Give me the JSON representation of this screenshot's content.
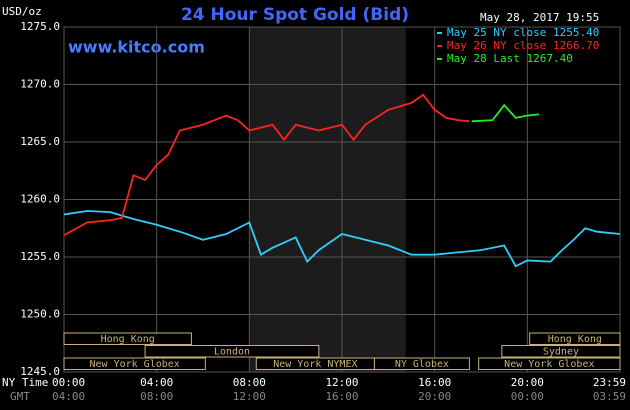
{
  "chart_data": {
    "type": "line",
    "title": "24 Hour Spot Gold (Bid)",
    "y_label": "USD/oz",
    "timestamp": "May 28, 2017 19:55",
    "watermark": "www.kitco.com",
    "x_row_label": "NY Time",
    "x2_row_label": "GMT",
    "xlim": [
      0,
      24
    ],
    "xticks": [
      {
        "value": 0,
        "label": "00:00"
      },
      {
        "value": 4,
        "label": "04:00"
      },
      {
        "value": 8,
        "label": "08:00"
      },
      {
        "value": 12,
        "label": "12:00"
      },
      {
        "value": 16,
        "label": "16:00"
      },
      {
        "value": 20,
        "label": "20:00"
      },
      {
        "value": 24,
        "label": "23:59"
      }
    ],
    "x2_labels": [
      "04:00",
      "08:00",
      "12:00",
      "16:00",
      "20:00",
      "00:00",
      "03:59"
    ],
    "ylim": [
      1245,
      1275
    ],
    "yticks": [
      {
        "value": 1245,
        "label": "1245.0"
      },
      {
        "value": 1250,
        "label": "1250.0"
      },
      {
        "value": 1255,
        "label": "1255.0"
      },
      {
        "value": 1260,
        "label": "1260.0"
      },
      {
        "value": 1265,
        "label": "1265.0"
      },
      {
        "value": 1270,
        "label": "1270.0"
      },
      {
        "value": 1275,
        "label": "1275.0"
      }
    ],
    "grid": true,
    "series": [
      {
        "name": "May 25 NY close 1255.40",
        "color": "#33ccff",
        "x": [
          0,
          1,
          2,
          3,
          4,
          5,
          6,
          7,
          8,
          8.5,
          9,
          10,
          10.5,
          11,
          12,
          13,
          14,
          15,
          16,
          17,
          18,
          19,
          19.5,
          20,
          21,
          21.5,
          22,
          22.5,
          23,
          24
        ],
        "values": [
          1258.7,
          1259,
          1258.9,
          1258.3,
          1257.8,
          1257.2,
          1256.5,
          1257,
          1258,
          1255.2,
          1255.8,
          1256.7,
          1254.6,
          1255.6,
          1257,
          1256.5,
          1256,
          1255.2,
          1255.2,
          1255.4,
          1255.6,
          1256,
          1254.2,
          1254.7,
          1254.6,
          1255.6,
          1256.5,
          1257.5,
          1257.2,
          1257
        ]
      },
      {
        "name": "May 26 NY close 1266.70",
        "color": "#ff2222",
        "x": [
          0,
          1,
          2,
          2.5,
          3,
          3.5,
          4,
          4.5,
          5,
          6,
          7,
          7.5,
          8,
          9,
          9.5,
          10,
          11,
          12,
          12.5,
          13,
          14,
          15,
          15.5,
          16,
          16.5,
          17,
          17.5
        ],
        "values": [
          1256.9,
          1258,
          1258.2,
          1258.4,
          1262.1,
          1261.7,
          1263,
          1263.9,
          1266,
          1266.5,
          1267.3,
          1266.9,
          1266,
          1266.5,
          1265.2,
          1266.5,
          1266,
          1266.5,
          1265.2,
          1266.5,
          1267.8,
          1268.4,
          1269.1,
          1267.8,
          1267.1,
          1266.9,
          1266.8
        ]
      },
      {
        "name": "May 28 Last 1267.40",
        "color": "#22ee22",
        "x": [
          17.6,
          18.5,
          19,
          19.5,
          20,
          20.5
        ],
        "values": [
          1266.8,
          1266.9,
          1268.2,
          1267.1,
          1267.3,
          1267.4
        ]
      }
    ],
    "session_rows": [
      [
        {
          "label": "Hong Kong",
          "start": 0,
          "end": 5.5
        },
        {
          "label": "Hong Kong",
          "start": 20.1,
          "end": 24
        }
      ],
      [
        {
          "label": "London",
          "start": 3.5,
          "end": 11
        },
        {
          "label": "Sydney",
          "start": 18.9,
          "end": 24
        }
      ],
      [
        {
          "label": "New York Globex",
          "start": 0,
          "end": 6.1
        },
        {
          "label": "New York NYMEX",
          "start": 8.3,
          "end": 13.4
        },
        {
          "label": "NY Globex",
          "start": 13.4,
          "end": 17.5
        },
        {
          "label": "New York Globex",
          "start": 17.9,
          "end": 24
        }
      ]
    ]
  }
}
